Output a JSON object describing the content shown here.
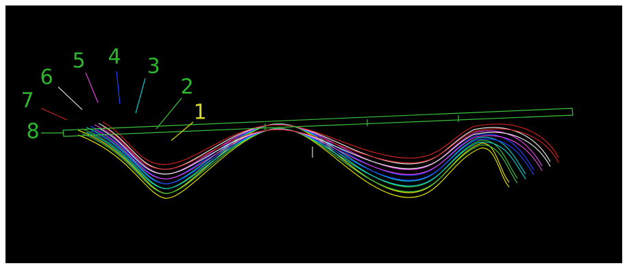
{
  "labels": [
    "1",
    "2",
    "3",
    "4",
    "5",
    "6",
    "7",
    "8"
  ]
}
